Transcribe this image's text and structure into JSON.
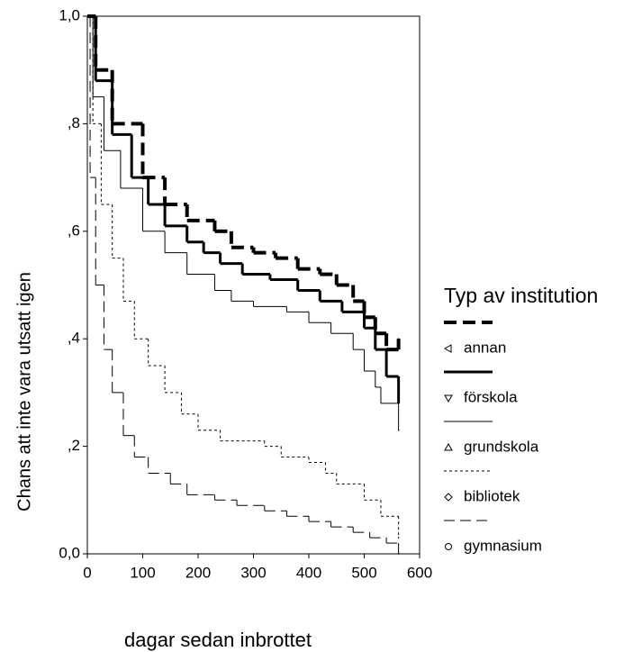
{
  "chart_data": {
    "type": "step",
    "xlabel": "dagar sedan inbrottet",
    "ylabel": "Chans att inte vara utsatt igen",
    "legend_title": "Typ av institution",
    "legend": "right",
    "xlim": [
      0,
      600
    ],
    "xticks": [
      0,
      100,
      200,
      300,
      400,
      500,
      600
    ],
    "ylim": [
      0,
      1
    ],
    "yticks": [
      {
        "value": 0,
        "label": "0,0"
      },
      {
        "value": 0.2,
        "label": ",2"
      },
      {
        "value": 0.4,
        "label": ",4"
      },
      {
        "value": 0.6,
        "label": ",6"
      },
      {
        "value": 0.8,
        "label": ",8"
      },
      {
        "value": 1,
        "label": "1,0"
      }
    ],
    "series": [
      {
        "name": "annan",
        "color": "#000000",
        "line_style": "dashed",
        "line_width": 4,
        "x": [
          0,
          15,
          45,
          100,
          140,
          180,
          230,
          260,
          300,
          340,
          380,
          420,
          450,
          480,
          500,
          520,
          540,
          562
        ],
        "values": [
          1.0,
          0.9,
          0.8,
          0.7,
          0.65,
          0.62,
          0.6,
          0.57,
          0.56,
          0.55,
          0.53,
          0.52,
          0.5,
          0.47,
          0.44,
          0.41,
          0.38,
          0.4
        ]
      },
      {
        "name": "förskola",
        "color": "#000000",
        "line_style": "solid",
        "line_width": 3,
        "x": [
          0,
          15,
          45,
          80,
          110,
          140,
          180,
          210,
          240,
          280,
          330,
          380,
          420,
          460,
          500,
          520,
          540,
          562
        ],
        "values": [
          1.0,
          0.88,
          0.78,
          0.7,
          0.65,
          0.61,
          0.58,
          0.56,
          0.54,
          0.52,
          0.51,
          0.49,
          0.47,
          0.45,
          0.42,
          0.38,
          0.33,
          0.28
        ]
      },
      {
        "name": "grundskola",
        "color": "#000000",
        "line_style": "solid",
        "line_width": 1,
        "x": [
          0,
          10,
          30,
          60,
          100,
          140,
          180,
          230,
          260,
          300,
          360,
          400,
          440,
          480,
          500,
          520,
          530,
          562
        ],
        "values": [
          1.0,
          0.85,
          0.75,
          0.68,
          0.6,
          0.56,
          0.52,
          0.49,
          0.47,
          0.46,
          0.45,
          0.43,
          0.41,
          0.38,
          0.34,
          0.31,
          0.28,
          0.23
        ]
      },
      {
        "name": "bibliotek",
        "color": "#000000",
        "line_style": "dotted",
        "line_width": 1,
        "x": [
          0,
          10,
          25,
          45,
          65,
          85,
          110,
          140,
          170,
          200,
          240,
          320,
          350,
          400,
          430,
          450,
          500,
          530,
          562
        ],
        "values": [
          1.0,
          0.8,
          0.65,
          0.55,
          0.47,
          0.4,
          0.35,
          0.3,
          0.26,
          0.23,
          0.21,
          0.2,
          0.18,
          0.17,
          0.15,
          0.13,
          0.1,
          0.07,
          0.03
        ]
      },
      {
        "name": "gymnasium",
        "color": "#000000",
        "line_style": "long-dash",
        "line_width": 1,
        "x": [
          0,
          5,
          15,
          30,
          45,
          65,
          85,
          110,
          150,
          180,
          230,
          270,
          320,
          360,
          400,
          440,
          480,
          510,
          540,
          562
        ],
        "values": [
          1.0,
          0.7,
          0.5,
          0.38,
          0.3,
          0.22,
          0.18,
          0.15,
          0.13,
          0.11,
          0.1,
          0.09,
          0.08,
          0.07,
          0.06,
          0.05,
          0.04,
          0.03,
          0.02,
          0.0
        ]
      }
    ]
  }
}
